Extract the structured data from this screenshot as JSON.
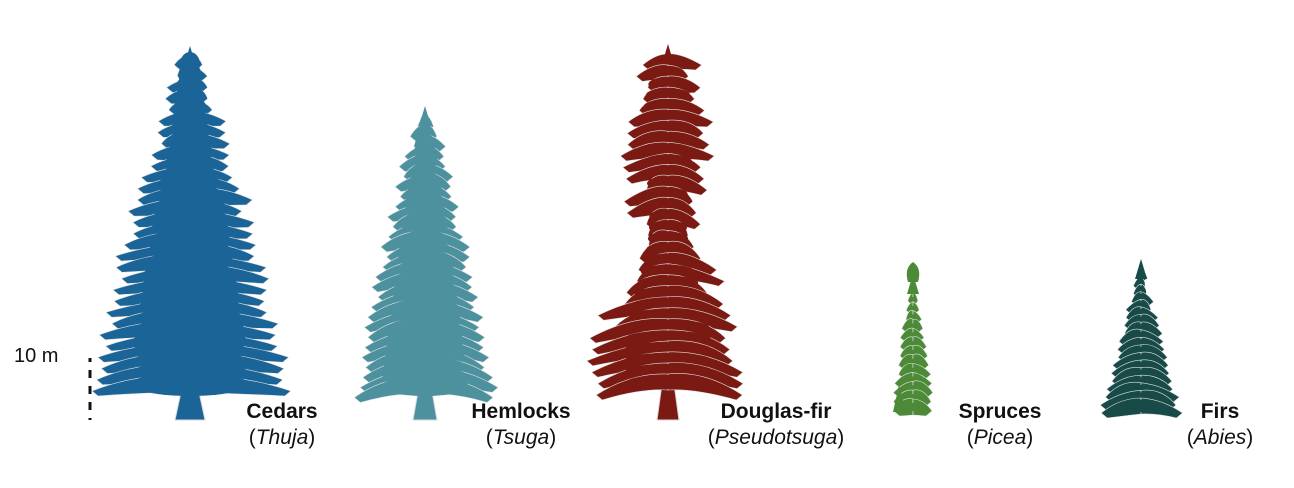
{
  "scale": {
    "label": "10 m"
  },
  "trees": [
    {
      "id": "cedar",
      "common": "Cedars",
      "genus": "Thuja",
      "color": "#1b6497",
      "icon": "tall-conifer-silhouette"
    },
    {
      "id": "hemlock",
      "common": "Hemlocks",
      "genus": "Tsuga",
      "color": "#4d919f",
      "icon": "drooping-conifer-silhouette"
    },
    {
      "id": "douglas",
      "common": "Douglas-fir",
      "genus": "Pseudotsuga",
      "color": "#7a1a12",
      "icon": "irregular-conifer-silhouette"
    },
    {
      "id": "spruce",
      "common": "Spruces",
      "genus": "Picea",
      "color": "#4c8a37",
      "icon": "narrow-spire-silhouette"
    },
    {
      "id": "fir",
      "common": "Firs",
      "genus": "Abies",
      "color": "#184a48",
      "icon": "conical-conifer-silhouette"
    }
  ]
}
